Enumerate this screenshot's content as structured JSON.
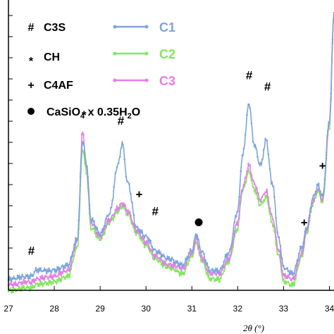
{
  "chart_data": {
    "type": "line",
    "xlabel": "2θ (°)",
    "xlim": [
      27,
      34.1
    ],
    "ylim": [
      0,
      1
    ],
    "x_ticks": [
      "27",
      "28",
      "29",
      "30",
      "31",
      "32",
      "33",
      "34"
    ],
    "x_tick_values": [
      27,
      28,
      29,
      30,
      31,
      32,
      33,
      34
    ],
    "phase_legend": [
      {
        "symbol": "#",
        "label": "C3S"
      },
      {
        "symbol": "*",
        "label": "CH"
      },
      {
        "symbol": "+",
        "label": "C4AF"
      },
      {
        "symbol": "●",
        "label": "CaSiO",
        "sub": "4",
        "label_mid": " x 0.35H",
        "sub2": "2",
        "label_end": "O"
      }
    ],
    "series": [
      {
        "name": "C1",
        "color": "#7da4dc",
        "x": [
          27.0,
          27.5,
          27.6,
          28.0,
          28.3,
          28.5,
          28.62,
          28.7,
          28.8,
          29.0,
          29.2,
          29.4,
          29.48,
          29.6,
          29.8,
          30.0,
          30.2,
          30.5,
          30.8,
          31.0,
          31.1,
          31.2,
          31.4,
          31.6,
          31.8,
          32.0,
          32.1,
          32.25,
          32.35,
          32.5,
          32.62,
          32.75,
          32.9,
          33.0,
          33.2,
          33.4,
          33.5,
          33.65,
          33.75,
          33.85,
          34.0,
          34.1
        ],
        "y": [
          0.04,
          0.05,
          0.07,
          0.07,
          0.09,
          0.18,
          0.53,
          0.45,
          0.25,
          0.2,
          0.27,
          0.45,
          0.52,
          0.38,
          0.22,
          0.19,
          0.14,
          0.11,
          0.09,
          0.14,
          0.2,
          0.14,
          0.07,
          0.07,
          0.13,
          0.28,
          0.47,
          0.66,
          0.52,
          0.44,
          0.53,
          0.38,
          0.18,
          0.08,
          0.06,
          0.15,
          0.22,
          0.33,
          0.37,
          0.33,
          0.6,
          0.98
        ]
      },
      {
        "name": "C2",
        "color": "#7fe85a",
        "x": [
          27.0,
          27.5,
          27.6,
          28.0,
          28.3,
          28.5,
          28.62,
          28.7,
          28.8,
          29.0,
          29.2,
          29.4,
          29.48,
          29.6,
          29.8,
          30.0,
          30.2,
          30.5,
          30.8,
          31.0,
          31.1,
          31.2,
          31.4,
          31.6,
          31.8,
          32.0,
          32.1,
          32.25,
          32.35,
          32.5,
          32.62,
          32.75,
          32.9,
          33.0,
          33.2,
          33.4,
          33.5,
          33.65,
          33.75,
          33.85,
          34.0,
          34.1
        ],
        "y": [
          0.0,
          0.01,
          0.02,
          0.03,
          0.05,
          0.15,
          0.5,
          0.42,
          0.22,
          0.18,
          0.24,
          0.28,
          0.3,
          0.27,
          0.2,
          0.16,
          0.11,
          0.08,
          0.06,
          0.12,
          0.17,
          0.11,
          0.04,
          0.04,
          0.1,
          0.22,
          0.35,
          0.42,
          0.36,
          0.3,
          0.33,
          0.24,
          0.12,
          0.03,
          0.02,
          0.12,
          0.2,
          0.31,
          0.35,
          0.31,
          0.58,
          0.97
        ]
      },
      {
        "name": "C3",
        "color": "#e47ee8",
        "x": [
          27.0,
          27.5,
          27.6,
          28.0,
          28.3,
          28.5,
          28.62,
          28.7,
          28.8,
          29.0,
          29.2,
          29.4,
          29.48,
          29.6,
          29.8,
          30.0,
          30.2,
          30.5,
          30.8,
          31.0,
          31.1,
          31.2,
          31.4,
          31.6,
          31.8,
          32.0,
          32.1,
          32.25,
          32.35,
          32.5,
          32.62,
          32.75,
          32.9,
          33.0,
          33.2,
          33.4,
          33.5,
          33.65,
          33.75,
          33.85,
          34.0,
          34.1
        ],
        "y": [
          0.02,
          0.03,
          0.04,
          0.05,
          0.07,
          0.17,
          0.56,
          0.44,
          0.24,
          0.19,
          0.25,
          0.29,
          0.31,
          0.28,
          0.21,
          0.17,
          0.12,
          0.09,
          0.08,
          0.13,
          0.18,
          0.12,
          0.06,
          0.06,
          0.11,
          0.24,
          0.36,
          0.44,
          0.38,
          0.32,
          0.35,
          0.26,
          0.14,
          0.05,
          0.04,
          0.13,
          0.21,
          0.32,
          0.36,
          0.32,
          0.59,
          0.97
        ]
      }
    ],
    "annotations": [
      {
        "text": "#",
        "x": 27.5,
        "y_label": 0.14
      },
      {
        "text": "*",
        "x": 28.65,
        "y_label": 0.62
      },
      {
        "text": "#",
        "x": 29.45,
        "y_label": 0.6
      },
      {
        "text": "+",
        "x": 29.85,
        "y_label": 0.34
      },
      {
        "text": "#",
        "x": 30.2,
        "y_label": 0.28
      },
      {
        "text": "●",
        "x": 31.15,
        "y_label": 0.24
      },
      {
        "text": "#",
        "x": 32.25,
        "y_label": 0.76
      },
      {
        "text": "#",
        "x": 32.65,
        "y_label": 0.72
      },
      {
        "text": "+",
        "x": 33.45,
        "y_label": 0.24
      },
      {
        "text": "+",
        "x": 33.85,
        "y_label": 0.44
      }
    ],
    "legend_position": "top-left",
    "grid": false
  }
}
